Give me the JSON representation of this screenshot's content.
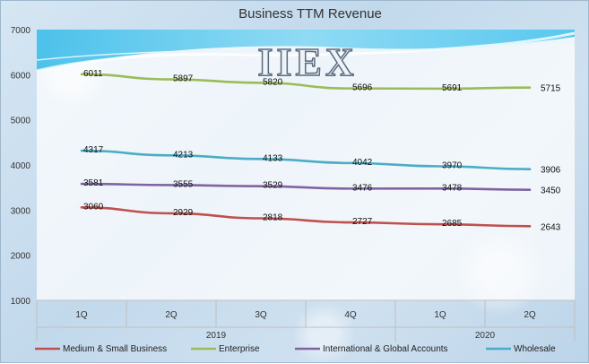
{
  "chart_data": {
    "type": "line",
    "title": "Business TTM Revenue",
    "categories": [
      "1Q",
      "2Q",
      "3Q",
      "4Q",
      "1Q",
      "2Q"
    ],
    "year_groups": [
      {
        "label": "2019",
        "span": [
          0,
          3
        ]
      },
      {
        "label": "2020",
        "span": [
          4,
          5
        ]
      }
    ],
    "ylim": [
      1000,
      7000
    ],
    "yticks": [
      1000,
      2000,
      3000,
      4000,
      5000,
      6000,
      7000
    ],
    "grid": false,
    "legend": "bottom",
    "series": [
      {
        "name": "Medium & Small Business",
        "color": "#c0504d",
        "values": [
          3060,
          2929,
          2818,
          2727,
          2685,
          2643
        ]
      },
      {
        "name": "Enterprise",
        "color": "#9bbb59",
        "values": [
          6011,
          5897,
          5820,
          5696,
          5691,
          5715
        ]
      },
      {
        "name": "International & Global Accounts",
        "color": "#8064a2",
        "values": [
          3581,
          3555,
          3529,
          3476,
          3478,
          3450
        ]
      },
      {
        "name": "Wholesale",
        "color": "#4bacc6",
        "values": [
          4317,
          4213,
          4133,
          4042,
          3970,
          3906
        ]
      }
    ]
  },
  "logo": {
    "text": "IIEX"
  }
}
